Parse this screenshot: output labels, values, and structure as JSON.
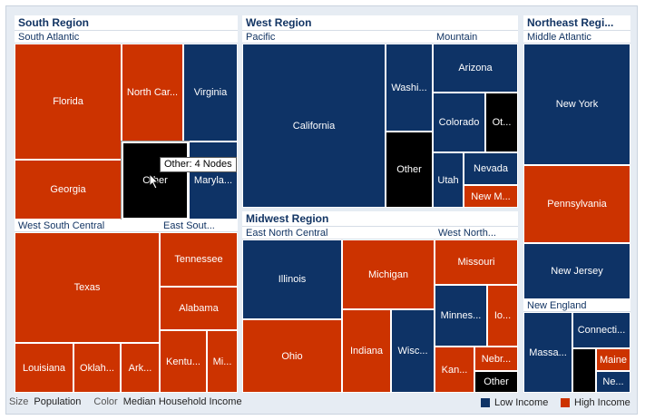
{
  "colors": {
    "low": "#0e3366",
    "high": "#cc3300",
    "other": "#000000"
  },
  "regions": {
    "south": {
      "title": "South Region",
      "south_atlantic": {
        "title": "South Atlantic",
        "florida": "Florida",
        "north_carolina": "North Car...",
        "virginia": "Virginia",
        "georgia": "Georgia",
        "other": "Other",
        "maryland": "Maryla..."
      },
      "west_south_central": {
        "title": "West South Central",
        "texas": "Texas",
        "louisiana": "Louisiana",
        "oklahoma": "Oklah...",
        "arkansas": "Ark..."
      },
      "east_south_central": {
        "title": "East Sout...",
        "tennessee": "Tennessee",
        "alabama": "Alabama",
        "kentucky": "Kentu...",
        "mississippi": "Mi..."
      }
    },
    "west": {
      "title": "West Region",
      "pacific": {
        "title": "Pacific",
        "california": "California",
        "washington": "Washi...",
        "other": "Other"
      },
      "mountain": {
        "title": "Mountain",
        "arizona": "Arizona",
        "colorado": "Colorado",
        "other": "Ot...",
        "utah": "Utah",
        "nevada": "Nevada",
        "new_mexico": "New M..."
      }
    },
    "midwest": {
      "title": "Midwest Region",
      "east_north_central": {
        "title": "East North Central",
        "illinois": "Illinois",
        "michigan": "Michigan",
        "ohio": "Ohio",
        "indiana": "Indiana",
        "wisconsin": "Wisc..."
      },
      "west_north_central": {
        "title": "West North...",
        "missouri": "Missouri",
        "minnesota": "Minnes...",
        "iowa": "Io...",
        "kansas": "Kan...",
        "nebraska": "Nebr...",
        "other": "Other"
      }
    },
    "northeast": {
      "title": "Northeast Regi...",
      "middle_atlantic": {
        "title": "Middle Atlantic",
        "new_york": "New York",
        "pennsylvania": "Pennsylvania",
        "new_jersey": "New Jersey"
      },
      "new_england": {
        "title": "New England",
        "massachusetts": "Massa...",
        "connecticut": "Connecti...",
        "maine": "Maine",
        "new_hampshire": "Ne..."
      }
    }
  },
  "tooltip": "Other: 4 Nodes",
  "footer": {
    "size_label": "Size",
    "size_value": "Population",
    "color_label": "Color",
    "color_value": "Median Household Income"
  },
  "legend": {
    "low": "Low Income",
    "high": "High Income"
  },
  "chart_data": {
    "type": "treemap",
    "size_measure": "Population",
    "color_measure": "Median Household Income",
    "color_categories": [
      "Low Income",
      "High Income"
    ],
    "groups": [
      {
        "region": "South Region",
        "divisions": [
          {
            "name": "South Atlantic",
            "nodes": [
              [
                "Florida",
                "High Income"
              ],
              [
                "North Car...",
                "High Income"
              ],
              [
                "Virginia",
                "Low Income"
              ],
              [
                "Georgia",
                "High Income"
              ],
              [
                "Other",
                "Other"
              ],
              [
                "Maryla...",
                "Low Income"
              ]
            ]
          },
          {
            "name": "West South Central",
            "nodes": [
              [
                "Texas",
                "High Income"
              ],
              [
                "Louisiana",
                "High Income"
              ],
              [
                "Oklah...",
                "High Income"
              ],
              [
                "Ark...",
                "High Income"
              ]
            ]
          },
          {
            "name": "East Sout...",
            "nodes": [
              [
                "Tennessee",
                "High Income"
              ],
              [
                "Alabama",
                "High Income"
              ],
              [
                "Kentu...",
                "High Income"
              ],
              [
                "Mi...",
                "High Income"
              ]
            ]
          }
        ]
      },
      {
        "region": "West Region",
        "divisions": [
          {
            "name": "Pacific",
            "nodes": [
              [
                "California",
                "Low Income"
              ],
              [
                "Washi...",
                "Low Income"
              ],
              [
                "Other",
                "Other"
              ]
            ]
          },
          {
            "name": "Mountain",
            "nodes": [
              [
                "Arizona",
                "Low Income"
              ],
              [
                "Colorado",
                "Low Income"
              ],
              [
                "Ot...",
                "Other"
              ],
              [
                "Utah",
                "Low Income"
              ],
              [
                "Nevada",
                "Low Income"
              ],
              [
                "New M...",
                "High Income"
              ]
            ]
          }
        ]
      },
      {
        "region": "Midwest Region",
        "divisions": [
          {
            "name": "East North Central",
            "nodes": [
              [
                "Illinois",
                "Low Income"
              ],
              [
                "Michigan",
                "High Income"
              ],
              [
                "Ohio",
                "High Income"
              ],
              [
                "Indiana",
                "High Income"
              ],
              [
                "Wisc...",
                "Low Income"
              ]
            ]
          },
          {
            "name": "West North...",
            "nodes": [
              [
                "Missouri",
                "High Income"
              ],
              [
                "Minnes...",
                "Low Income"
              ],
              [
                "Io...",
                "High Income"
              ],
              [
                "Kan...",
                "High Income"
              ],
              [
                "Nebr...",
                "High Income"
              ],
              [
                "Other",
                "Other"
              ]
            ]
          }
        ]
      },
      {
        "region": "Northeast Regi...",
        "divisions": [
          {
            "name": "Middle Atlantic",
            "nodes": [
              [
                "New York",
                "Low Income"
              ],
              [
                "Pennsylvania",
                "High Income"
              ],
              [
                "New Jersey",
                "Low Income"
              ]
            ]
          },
          {
            "name": "New England",
            "nodes": [
              [
                "Massa...",
                "Low Income"
              ],
              [
                "Connecti...",
                "Low Income"
              ],
              [
                "Maine",
                "High Income"
              ],
              [
                "Ne...",
                "Low Income"
              ],
              [
                "",
                "Other"
              ]
            ]
          }
        ]
      }
    ]
  }
}
